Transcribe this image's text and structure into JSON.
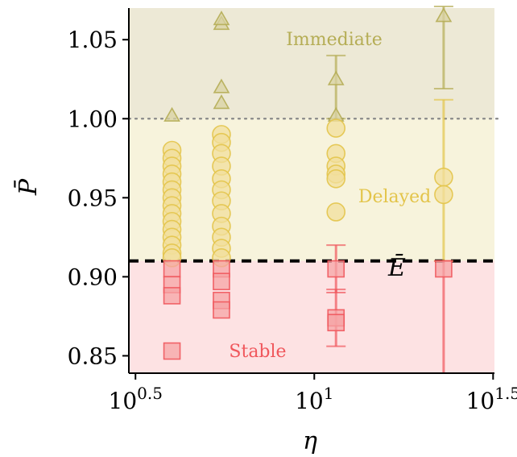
{
  "chart_data": {
    "type": "scatter",
    "x_scale": "log10",
    "xlabel": "η",
    "ylabel": "P̄",
    "x_ticks": [
      {
        "value": 3.1623,
        "base": "10",
        "exp": "0.5"
      },
      {
        "value": 10,
        "base": "10",
        "exp": "1"
      },
      {
        "value": 31.623,
        "base": "10",
        "exp": "1.5"
      }
    ],
    "y_ticks": [
      {
        "value": 0.85,
        "label": "0.85"
      },
      {
        "value": 0.9,
        "label": "0.90"
      },
      {
        "value": 0.95,
        "label": "0.95"
      },
      {
        "value": 1.0,
        "label": "1.00"
      },
      {
        "value": 1.05,
        "label": "1.05"
      }
    ],
    "xlim": [
      3.03,
      31.9
    ],
    "ylim": [
      0.839,
      1.07
    ],
    "grid": false,
    "regions": [
      {
        "name": "Immediate",
        "y_from": 1.0,
        "y_to": 1.07,
        "color": "#ede9d6",
        "label_color": "#b5ad55"
      },
      {
        "name": "Delayed",
        "y_from": 0.91,
        "y_to": 1.0,
        "color": "#f7f3dc",
        "label_color": "#e3c44a"
      },
      {
        "name": "Stable",
        "y_from": 0.839,
        "y_to": 0.91,
        "color": "#fde2e3",
        "label_color": "#f0575c"
      }
    ],
    "reference_lines": [
      {
        "name": "Ē",
        "y": 0.91,
        "style": "dashed",
        "color": "#000000"
      },
      {
        "name": "",
        "y": 1.0,
        "style": "dotted",
        "color": "#888888"
      }
    ],
    "series": [
      {
        "marker": "triangle",
        "color": "#b5ad55",
        "fill": "#d8d2a2",
        "points": [
          {
            "x": 4.0,
            "y": 1.002
          },
          {
            "x": 5.5,
            "y": 1.06
          },
          {
            "x": 5.5,
            "y": 1.063
          },
          {
            "x": 5.5,
            "y": 1.02
          },
          {
            "x": 5.5,
            "y": 1.01
          },
          {
            "x": 11.5,
            "y": 1.025,
            "err_low": 1.0,
            "err_high": 1.04
          },
          {
            "x": 11.5,
            "y": 1.002
          },
          {
            "x": 23.0,
            "y": 1.065,
            "err_low": 1.019,
            "err_high": 1.071
          }
        ]
      },
      {
        "marker": "circle",
        "color": "#e3c44a",
        "fill": "#f2df9c",
        "points": [
          {
            "x": 4.0,
            "y": 0.98
          },
          {
            "x": 4.0,
            "y": 0.975
          },
          {
            "x": 4.0,
            "y": 0.97
          },
          {
            "x": 4.0,
            "y": 0.965
          },
          {
            "x": 4.0,
            "y": 0.96
          },
          {
            "x": 4.0,
            "y": 0.955
          },
          {
            "x": 4.0,
            "y": 0.95
          },
          {
            "x": 4.0,
            "y": 0.945
          },
          {
            "x": 4.0,
            "y": 0.94
          },
          {
            "x": 4.0,
            "y": 0.935
          },
          {
            "x": 4.0,
            "y": 0.93
          },
          {
            "x": 4.0,
            "y": 0.925
          },
          {
            "x": 4.0,
            "y": 0.92
          },
          {
            "x": 4.0,
            "y": 0.915
          },
          {
            "x": 4.0,
            "y": 0.912
          },
          {
            "x": 5.5,
            "y": 0.99
          },
          {
            "x": 5.5,
            "y": 0.985
          },
          {
            "x": 5.5,
            "y": 0.978
          },
          {
            "x": 5.5,
            "y": 0.97
          },
          {
            "x": 5.5,
            "y": 0.962
          },
          {
            "x": 5.5,
            "y": 0.955
          },
          {
            "x": 5.5,
            "y": 0.948
          },
          {
            "x": 5.5,
            "y": 0.94
          },
          {
            "x": 5.5,
            "y": 0.932
          },
          {
            "x": 5.5,
            "y": 0.925
          },
          {
            "x": 5.5,
            "y": 0.918
          },
          {
            "x": 5.5,
            "y": 0.912
          },
          {
            "x": 11.5,
            "y": 0.994
          },
          {
            "x": 11.5,
            "y": 0.978
          },
          {
            "x": 11.5,
            "y": 0.97
          },
          {
            "x": 11.5,
            "y": 0.965
          },
          {
            "x": 11.5,
            "y": 0.962
          },
          {
            "x": 11.5,
            "y": 0.941
          },
          {
            "x": 23.0,
            "y": 0.963,
            "err_low": 0.91,
            "err_high": 1.012
          },
          {
            "x": 23.0,
            "y": 0.952
          }
        ]
      },
      {
        "marker": "square",
        "color": "#f0575c",
        "fill": "#f6a4a6",
        "points": [
          {
            "x": 4.0,
            "y": 0.905
          },
          {
            "x": 4.0,
            "y": 0.895
          },
          {
            "x": 4.0,
            "y": 0.888
          },
          {
            "x": 4.0,
            "y": 0.853
          },
          {
            "x": 5.5,
            "y": 0.905
          },
          {
            "x": 5.5,
            "y": 0.897
          },
          {
            "x": 5.5,
            "y": 0.885
          },
          {
            "x": 5.5,
            "y": 0.879
          },
          {
            "x": 11.5,
            "y": 0.905,
            "err_low": 0.89,
            "err_high": 0.92
          },
          {
            "x": 11.5,
            "y": 0.874,
            "err_low": 0.856,
            "err_high": 0.892
          },
          {
            "x": 11.5,
            "y": 0.871
          },
          {
            "x": 23.0,
            "y": 0.905,
            "err_low": 0.839,
            "err_high": 0.91
          }
        ]
      }
    ]
  }
}
